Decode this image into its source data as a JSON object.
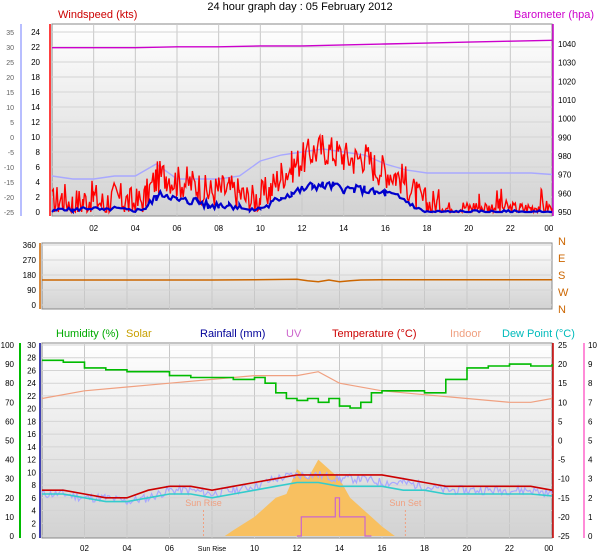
{
  "title": "24 hour graph day : 05 February 2012",
  "colors": {
    "wind_gust": "#ff0000",
    "wind_avg": "#0000cc",
    "temp_axis": "#a0a8ff",
    "baro": "#cc00cc",
    "dir": "#cc6600",
    "humidity": "#00bb00",
    "solar": "#c8a000",
    "rain": "#000099",
    "uv": "#cc66cc",
    "temperature": "#cc0000",
    "indoor": "#f0a080",
    "dew": "#33cccc",
    "temp_faint": "#a8a8ff",
    "sun_fill": "#f8c060",
    "uv_pink": "#ff66cc"
  },
  "x_labels": [
    "02",
    "04",
    "06",
    "Sun Rise",
    "10",
    "12",
    "14",
    "16",
    "18",
    "20",
    "22",
    "00"
  ],
  "sun_labels": {
    "rise": "Sun Rise",
    "set": "Sun Set"
  },
  "chart_data": [
    {
      "type": "line",
      "title": "Windspeed (kts)",
      "right_label": "Barometer (hpa)",
      "x_unit": "hour",
      "xlim": [
        0,
        24
      ],
      "y_left_ticks": [
        "0",
        "2",
        "4",
        "6",
        "8",
        "10",
        "12",
        "14",
        "16",
        "18",
        "20",
        "22",
        "24"
      ],
      "y_far_left_ticks": [
        "-25",
        "-20",
        "-15",
        "-10",
        "-5",
        "0",
        "5",
        "10",
        "15",
        "20",
        "25",
        "30",
        "35"
      ],
      "y_right_ticks": [
        "950",
        "960",
        "970",
        "980",
        "990",
        "1000",
        "1010",
        "1020",
        "1030",
        "1040"
      ],
      "series": [
        {
          "name": "Windspeed (kts)",
          "role": "gust",
          "axis": "wind",
          "x": [
            0,
            0.5,
            1,
            1.5,
            2,
            2.5,
            3,
            3.5,
            4,
            4.5,
            5,
            5.5,
            6,
            6.5,
            7,
            7.5,
            8,
            8.5,
            9,
            9.5,
            10,
            10.5,
            11,
            11.5,
            12,
            12.5,
            13,
            13.5,
            14,
            14.5,
            15,
            15.5,
            16,
            16.5,
            17,
            17.5,
            18,
            18.5,
            19,
            19.5,
            20,
            20.5,
            21,
            21.5,
            22,
            22.5,
            23,
            23.5,
            24
          ],
          "y": [
            1,
            2,
            1,
            1.5,
            2,
            1,
            2,
            1.5,
            1,
            2,
            4.5,
            5,
            4,
            4,
            3.5,
            2.5,
            3,
            3,
            2.5,
            1.5,
            2,
            3,
            5,
            6,
            7,
            8,
            8.5,
            8,
            7.5,
            7,
            7.5,
            6,
            5.5,
            5,
            4,
            2,
            1,
            1,
            0.5,
            1,
            0.5,
            1,
            0.5,
            1,
            0.5,
            0.5,
            0.5,
            1,
            0.5
          ]
        },
        {
          "name": "",
          "role": "average",
          "axis": "wind",
          "x": [
            0,
            0.5,
            1,
            1.5,
            2,
            2.5,
            3,
            3.5,
            4,
            4.5,
            5,
            5.5,
            6,
            6.5,
            7,
            7.5,
            8,
            8.5,
            9,
            9.5,
            10,
            10.5,
            11,
            11.5,
            12,
            12.5,
            13,
            13.5,
            14,
            14.5,
            15,
            15.5,
            16,
            16.5,
            17,
            17.5,
            18,
            18.5,
            19,
            19.5,
            20,
            20.5,
            21,
            21.5,
            22,
            22.5,
            23,
            23.5,
            24
          ],
          "y": [
            0,
            0.5,
            0.2,
            0.5,
            0.5,
            0.2,
            0.5,
            0.3,
            0.2,
            0.5,
            2,
            2.5,
            1.5,
            1.5,
            1.5,
            0.8,
            1,
            1,
            0.8,
            0.2,
            0.5,
            1,
            2,
            2.5,
            3,
            3.5,
            3.5,
            3.5,
            3,
            3,
            3,
            2.5,
            2.5,
            2,
            1.5,
            0.5,
            0,
            0,
            0,
            0,
            0,
            0,
            0,
            0,
            0,
            0,
            0,
            0,
            0
          ]
        },
        {
          "name": "",
          "role": "temperature-trace",
          "axis": "far_left",
          "x": [
            0,
            1,
            2,
            3,
            4,
            5,
            6,
            7,
            8,
            9,
            10,
            11,
            12,
            13,
            14,
            15,
            16,
            17,
            18,
            19,
            20,
            21,
            22,
            23,
            24
          ],
          "y": [
            -13,
            -14,
            -14,
            -13,
            -13,
            -9,
            -14,
            -14,
            -14,
            -13,
            -8,
            -6,
            -5,
            -4,
            -5,
            -6,
            -9,
            -11,
            -12,
            -12,
            -12,
            -12,
            -12,
            -12,
            -12.5
          ]
        },
        {
          "name": "Barometer (hpa)",
          "role": "barometer",
          "axis": "baro",
          "x": [
            0,
            2,
            4,
            6,
            8,
            10,
            12,
            14,
            16,
            18,
            20,
            22,
            24
          ],
          "y": [
            1038,
            1038,
            1038,
            1038.5,
            1038.5,
            1039,
            1039,
            1039.5,
            1040,
            1040.5,
            1041,
            1041.5,
            1042
          ]
        }
      ]
    },
    {
      "type": "line",
      "title": "",
      "x_unit": "hour",
      "xlim": [
        0,
        24
      ],
      "y_ticks": [
        "0",
        "90",
        "180",
        "270",
        "360"
      ],
      "compass_ticks": [
        "N",
        "W",
        "S",
        "E",
        "N"
      ],
      "series": [
        {
          "name": "",
          "role": "direction",
          "x": [
            0,
            2,
            4,
            6,
            8,
            10,
            12,
            12.5,
            13,
            13.5,
            14,
            14.5,
            15,
            16,
            18,
            20,
            22,
            24
          ],
          "y": [
            150,
            150,
            150,
            150,
            150,
            152,
            155,
            145,
            140,
            150,
            140,
            145,
            150,
            152,
            152,
            152,
            152,
            152
          ]
        }
      ]
    },
    {
      "type": "line",
      "title": "",
      "x_unit": "hour",
      "xlim": [
        0,
        24
      ],
      "legend": [
        "Humidity (%)",
        "Solar",
        "Rainfall (mm)",
        "UV",
        "Temperature (°C)",
        "Indoor",
        "Dew Point (°C)"
      ],
      "y_humidity_ticks": [
        "0",
        "10",
        "20",
        "30",
        "40",
        "50",
        "60",
        "70",
        "80",
        "90",
        "100"
      ],
      "y_rain_ticks": [
        "0",
        "2",
        "4",
        "6",
        "8",
        "10",
        "12",
        "14",
        "16",
        "18",
        "20",
        "22",
        "24",
        "26",
        "28",
        "30"
      ],
      "y_temp_ticks": [
        "-25",
        "-20",
        "-15",
        "-10",
        "-5",
        "0",
        "5",
        "10",
        "15",
        "20",
        "25"
      ],
      "y_uv_ticks": [
        "0",
        "1",
        "2",
        "3",
        "4",
        "5",
        "6",
        "7",
        "8",
        "9",
        "10"
      ],
      "series": [
        {
          "name": "Humidity (%)",
          "role": "humidity",
          "axis": "humidity",
          "x": [
            0,
            1,
            2,
            3,
            4,
            5,
            6,
            7,
            8,
            9,
            10,
            10.5,
            11,
            11.5,
            12,
            12.5,
            13,
            13.5,
            14,
            14.5,
            15,
            15.5,
            16,
            17,
            18,
            19,
            20,
            21,
            22,
            23,
            24
          ],
          "y": [
            92,
            91,
            88,
            87,
            86,
            86,
            84,
            83,
            83,
            82,
            83,
            80,
            75,
            72,
            71,
            72,
            70,
            72,
            68,
            67,
            70,
            75,
            76,
            76,
            75,
            82,
            88,
            89,
            90,
            89,
            90
          ]
        },
        {
          "name": "Temperature (°C)",
          "role": "temperature",
          "axis": "temp",
          "x": [
            0,
            1,
            2,
            3,
            4,
            5,
            6,
            7,
            8,
            9,
            10,
            11,
            12,
            13,
            14,
            15,
            16,
            17,
            18,
            19,
            20,
            21,
            22,
            23,
            24
          ],
          "y": [
            -13,
            -13,
            -14,
            -15,
            -15,
            -13,
            -12,
            -12,
            -13,
            -12,
            -11,
            -10,
            -9,
            -9,
            -9,
            -9,
            -9,
            -10,
            -11,
            -12,
            -12,
            -12,
            -12,
            -12,
            -13
          ]
        },
        {
          "name": "Dew Point (°C)",
          "role": "dew",
          "axis": "temp",
          "x": [
            0,
            1,
            2,
            3,
            4,
            5,
            6,
            7,
            8,
            9,
            10,
            11,
            12,
            13,
            14,
            15,
            16,
            17,
            18,
            19,
            20,
            21,
            22,
            23,
            24
          ],
          "y": [
            -14,
            -14,
            -15,
            -16,
            -16,
            -15,
            -14,
            -14,
            -15,
            -14,
            -13,
            -12,
            -11,
            -11,
            -12,
            -12,
            -12,
            -13,
            -13,
            -14,
            -14,
            -14,
            -14,
            -14,
            -14.5
          ]
        },
        {
          "name": "Indoor",
          "role": "indoor",
          "axis": "temp",
          "x": [
            0,
            2,
            4,
            6,
            8,
            10,
            12,
            13,
            14,
            16,
            18,
            20,
            22,
            23,
            24
          ],
          "y": [
            11,
            13,
            14,
            15,
            16,
            17,
            17,
            18,
            15,
            13,
            12,
            11,
            10,
            10,
            11
          ]
        },
        {
          "name": "",
          "role": "temperature-trace",
          "axis": "temp",
          "x": [
            0,
            1,
            2,
            3,
            4,
            5,
            6,
            7,
            8,
            9,
            10,
            11,
            12,
            13,
            14,
            15,
            16,
            17,
            18,
            19,
            20,
            21,
            22,
            23,
            24
          ],
          "y": [
            -14,
            -14,
            -15,
            -15,
            -16,
            -15,
            -13,
            -13,
            -14,
            -13,
            -12,
            -10,
            -9,
            -9,
            -10,
            -10,
            -11,
            -11,
            -12,
            -13,
            -13,
            -13,
            -13,
            -13,
            -14
          ]
        },
        {
          "name": "Solar",
          "role": "solar",
          "axis": "uv",
          "x": [
            8.6,
            9,
            10,
            10.5,
            11,
            11.5,
            12,
            12.5,
            13,
            13.5,
            14,
            14.5,
            15,
            15.5,
            16,
            16.6
          ],
          "y": [
            0,
            0.3,
            1,
            1.5,
            2,
            2.2,
            3.5,
            3,
            4,
            3.5,
            3,
            2,
            1.5,
            1,
            0.5,
            0
          ]
        },
        {
          "name": "UV",
          "role": "uv",
          "axis": "uv",
          "x": [
            12,
            12.2,
            12.2,
            13.8,
            13.8,
            14,
            14,
            14.2,
            14.2,
            15.2,
            15.2,
            15.5
          ],
          "y": [
            0,
            0,
            1,
            1,
            2,
            2,
            1,
            1,
            1,
            1,
            0,
            0
          ]
        }
      ]
    }
  ]
}
